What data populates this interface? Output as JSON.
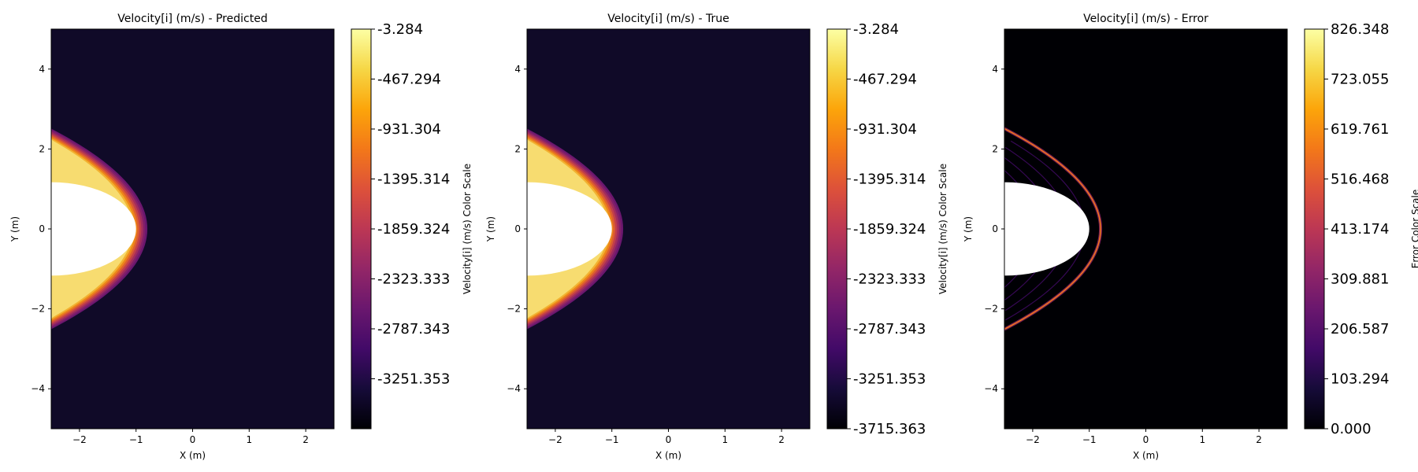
{
  "chart_data": [
    {
      "type": "heatmap",
      "title": "Velocity[i] (m/s) - Predicted",
      "xlabel": "X (m)",
      "ylabel": "Y (m)",
      "xlim": [
        -2.5,
        2.5
      ],
      "ylim": [
        -5,
        5
      ],
      "xticks": [
        -2,
        -1,
        0,
        1,
        2
      ],
      "yticks": [
        -4,
        -2,
        0,
        2,
        4
      ],
      "field": "predicted",
      "colormap": "inferno",
      "colorbar": {
        "label": "Velocity[i] (m/s) Color Scale",
        "range": [
          -3715.363,
          -3.284
        ],
        "ticks": [
          -3.284,
          -467.294,
          -931.304,
          -1395.314,
          -1859.324,
          -2323.333,
          -2787.343,
          -3251.353
        ],
        "tick_labels": [
          "-3.284",
          "-467.294",
          "-931.304",
          "-1395.314",
          "-1859.324",
          "-2323.333",
          "-2787.343",
          "-3251.353"
        ]
      }
    },
    {
      "type": "heatmap",
      "title": "Velocity[i] (m/s) - True",
      "xlabel": "X (m)",
      "ylabel": "Y (m)",
      "xlim": [
        -2.5,
        2.5
      ],
      "ylim": [
        -5,
        5
      ],
      "xticks": [
        -2,
        -1,
        0,
        1,
        2
      ],
      "yticks": [
        -4,
        -2,
        0,
        2,
        4
      ],
      "field": "true",
      "colormap": "inferno",
      "colorbar": {
        "label": "Velocity[i] (m/s) Color Scale",
        "range": [
          -3715.363,
          -3.284
        ],
        "ticks": [
          -3.284,
          -467.294,
          -931.304,
          -1395.314,
          -1859.324,
          -2323.333,
          -2787.343,
          -3251.353,
          -3715.363
        ],
        "tick_labels": [
          "-3.284",
          "-467.294",
          "-931.304",
          "-1395.314",
          "-1859.324",
          "-2323.333",
          "-2787.343",
          "-3251.353",
          "-3715.363"
        ]
      }
    },
    {
      "type": "heatmap",
      "title": "Velocity[i] (m/s) - Error",
      "xlabel": "X (m)",
      "ylabel": "Y (m)",
      "xlim": [
        -2.5,
        2.5
      ],
      "ylim": [
        -5,
        5
      ],
      "xticks": [
        -2,
        -1,
        0,
        1,
        2
      ],
      "yticks": [
        -4,
        -2,
        0,
        2,
        4
      ],
      "field": "error",
      "colormap": "inferno",
      "colorbar": {
        "label": "Error Color Scale",
        "range": [
          0.0,
          826.348
        ],
        "ticks": [
          826.348,
          723.055,
          619.761,
          516.468,
          413.174,
          309.881,
          206.587,
          103.294,
          0.0
        ],
        "tick_labels": [
          "826.348",
          "723.055",
          "619.761",
          "516.468",
          "413.174",
          "309.881",
          "206.587",
          "103.294",
          "0.000"
        ]
      }
    }
  ]
}
